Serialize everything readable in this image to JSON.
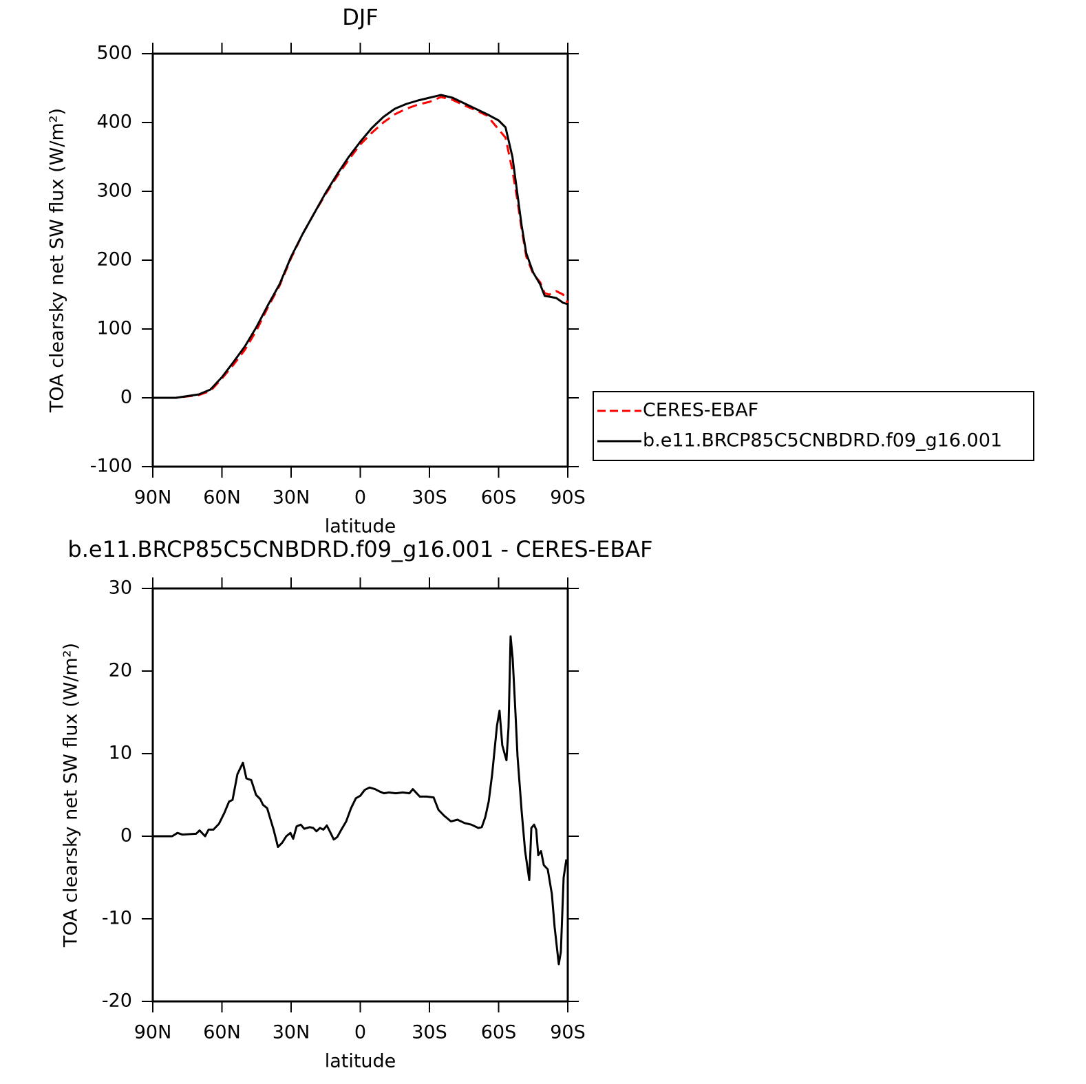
{
  "chart_data": [
    {
      "type": "line",
      "title": "DJF",
      "xlabel": "latitude",
      "ylabel": "TOA clearsky net SW flux (W/m²)",
      "x": [
        90,
        80,
        70,
        65,
        60,
        55,
        50,
        45,
        40,
        35,
        30,
        25,
        20,
        15,
        10,
        5,
        0,
        -5,
        -10,
        -15,
        -20,
        -25,
        -30,
        -35,
        -40,
        -45,
        -50,
        -55,
        -60,
        -63,
        -66,
        -68,
        -70,
        -72,
        -75,
        -78,
        -80,
        -82,
        -85,
        -88,
        -90
      ],
      "series": [
        {
          "name": "CERES-EBAF",
          "color": "#ff0000",
          "dash": true,
          "values": [
            0,
            0,
            4,
            10,
            28,
            48,
            70,
            98,
            132,
            163,
            203,
            238,
            268,
            296,
            322,
            346,
            368,
            385,
            400,
            412,
            420,
            426,
            430,
            437,
            433,
            425,
            418,
            410,
            390,
            378,
            330,
            290,
            245,
            205,
            180,
            168,
            152,
            150,
            155,
            150,
            138
          ]
        },
        {
          "name": "b.e11.BRCP85C5CNBDRD.f09_g16.001",
          "color": "#000000",
          "dash": false,
          "values": [
            0,
            0,
            5,
            12,
            30,
            52,
            75,
            103,
            135,
            165,
            205,
            238,
            268,
            298,
            325,
            350,
            372,
            392,
            408,
            420,
            427,
            432,
            436,
            440,
            436,
            428,
            420,
            412,
            403,
            393,
            350,
            300,
            250,
            210,
            182,
            165,
            148,
            147,
            145,
            138,
            136
          ]
        }
      ],
      "xlim": [
        90,
        -90
      ],
      "xticks": [
        {
          "value": 90,
          "label": "90N"
        },
        {
          "value": 60,
          "label": "60N"
        },
        {
          "value": 30,
          "label": "30N"
        },
        0,
        {
          "value": -30,
          "label": "30S"
        },
        {
          "value": -60,
          "label": "60S"
        },
        {
          "value": -90,
          "label": "90S"
        }
      ],
      "ylim": [
        -100,
        500
      ],
      "yticks": [
        -100,
        0,
        100,
        200,
        300,
        400,
        500
      ],
      "legend": "right"
    },
    {
      "type": "line",
      "title": "b.e11.BRCP85C5CNBDRD.f09_g16.001 - CERES-EBAF",
      "xlabel": "latitude",
      "ylabel": "TOA clearsky net SW flux (W/m²)",
      "x": [
        90,
        81.6,
        79.3,
        77.2,
        71.2,
        69.7,
        67.3,
        65.8,
        63.7,
        61.3,
        59.0,
        56.9,
        55.4,
        53.3,
        50.9,
        49.4,
        47.3,
        45.2,
        43.4,
        42.2,
        40.4,
        37.5,
        35.7,
        33.9,
        32.1,
        30.3,
        29.1,
        27.6,
        25.8,
        24.3,
        21.9,
        20.4,
        19.0,
        17.5,
        16.0,
        14.5,
        12.7,
        11.5,
        10.0,
        8.2,
        6.1,
        4.0,
        1.9,
        0,
        -1.9,
        -4.0,
        -6.4,
        -8.5,
        -10.3,
        -12.4,
        -15.4,
        -18.4,
        -21.3,
        -22.8,
        -25.8,
        -28.8,
        -31.8,
        -33.9,
        -36.3,
        -39.3,
        -42.2,
        -45.2,
        -48.2,
        -51.2,
        -52.7,
        -54.2,
        -55.7,
        -57.2,
        -59.3,
        -60.4,
        -61.6,
        -63.4,
        -64.3,
        -65.2,
        -66.1,
        -67.3,
        -68.2,
        -70.0,
        -71.5,
        -73.3,
        -74.2,
        -75.4,
        -76.3,
        -77.2,
        -78.4,
        -79.6,
        -81.3,
        -83.1,
        -84.3,
        -86.1,
        -87.0,
        -88.2,
        -89.4
      ],
      "series": [
        {
          "name": "b.e11.BRCP85C5CNBDRD.f09_g16.001 - CERES-EBAF",
          "color": "#000000",
          "dash": false,
          "values": [
            0,
            0,
            0.4,
            0.2,
            0.3,
            0.7,
            0,
            0.8,
            0.8,
            1.5,
            2.8,
            4.2,
            4.4,
            7.5,
            8.9,
            7.0,
            6.8,
            5.0,
            4.5,
            3.8,
            3.4,
            0.7,
            -1.3,
            -0.8,
            0,
            0.4,
            -0.3,
            1.2,
            1.4,
            0.9,
            1.1,
            1.0,
            0.6,
            1.0,
            0.8,
            1.3,
            0.3,
            -0.4,
            -0.1,
            0.8,
            1.8,
            3.4,
            4.6,
            4.9,
            5.6,
            5.9,
            5.7,
            5.4,
            5.2,
            5.3,
            5.2,
            5.3,
            5.2,
            5.7,
            4.8,
            4.8,
            4.7,
            3.2,
            2.5,
            1.8,
            2.0,
            1.6,
            1.4,
            1.0,
            1.1,
            2.3,
            4.2,
            7.5,
            13.4,
            15.2,
            11.0,
            9.2,
            13.2,
            24.2,
            21.5,
            15,
            9.7,
            3.0,
            -1.8,
            -5.3,
            1.0,
            1.4,
            0.8,
            -2.3,
            -1.8,
            -3.5,
            -4.0,
            -7.0,
            -11.0,
            -15.5,
            -14,
            -5,
            -2.8
          ]
        }
      ],
      "xlim": [
        90,
        -90
      ],
      "xticks": [
        {
          "value": 90,
          "label": "90N"
        },
        {
          "value": 60,
          "label": "60N"
        },
        {
          "value": 30,
          "label": "30N"
        },
        0,
        {
          "value": -30,
          "label": "30S"
        },
        {
          "value": -60,
          "label": "60S"
        },
        {
          "value": -90,
          "label": "90S"
        }
      ],
      "ylim": [
        -20,
        30
      ],
      "yticks": [
        -20,
        -10,
        0,
        10,
        20,
        30
      ]
    }
  ]
}
